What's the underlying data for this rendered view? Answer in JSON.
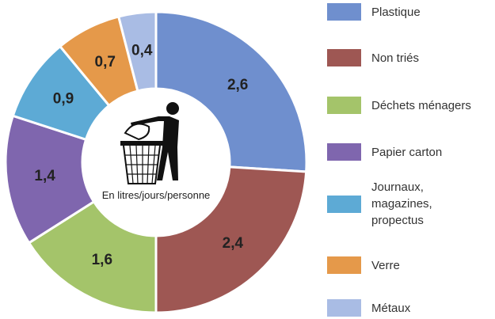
{
  "chart_data": {
    "type": "donut",
    "center_label": "En litres/jours/personne",
    "categories": [
      "Plastique",
      "Non triés",
      "Déchets ménagers",
      "Papier carton",
      "Journaux, magazines, propectus",
      "Verre",
      "Métaux"
    ],
    "values": [
      2.6,
      2.4,
      1.6,
      1.4,
      0.9,
      0.7,
      0.4
    ],
    "value_labels": [
      "2,6",
      "2,4",
      "1,6",
      "1,4",
      "0,9",
      "0,7",
      "0,4"
    ],
    "colors": [
      "#6f8fce",
      "#9e5753",
      "#a4c46a",
      "#7f66ae",
      "#5daad5",
      "#e5994a",
      "#a9bce4"
    ],
    "legend": "right"
  }
}
